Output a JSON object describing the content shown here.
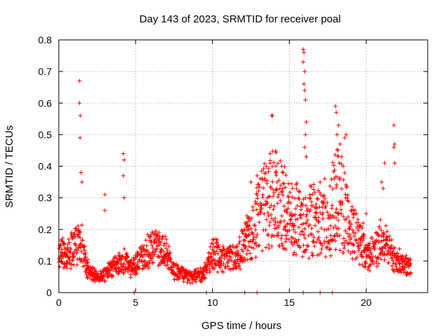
{
  "chart_data": {
    "type": "scatter",
    "title": "Day 143 of 2023, SRMTID for receiver poal",
    "xlabel": "GPS time / hours",
    "ylabel": "SRMTID / TECUs",
    "xlim": [
      0,
      24
    ],
    "ylim": [
      0,
      0.8
    ],
    "grid": true,
    "marker": "+",
    "color": "#ff0000",
    "x_ticks": [
      0,
      5,
      10,
      15,
      20
    ],
    "x_tick_labels": [
      "0",
      "5",
      "10",
      "15",
      "20"
    ],
    "y_ticks": [
      0,
      0.1,
      0.2,
      0.3,
      0.4,
      0.5,
      0.6,
      0.7,
      0.8
    ],
    "y_tick_labels": [
      "0",
      "0.1",
      "0.2",
      "0.3",
      "0.4",
      "0.5",
      "0.6",
      "0.7",
      "0.8"
    ],
    "baseline_trend": [
      [
        0.0,
        0.13
      ],
      [
        0.5,
        0.12
      ],
      [
        1.0,
        0.14
      ],
      [
        1.3,
        0.16
      ],
      [
        1.5,
        0.15
      ],
      [
        1.8,
        0.09
      ],
      [
        2.0,
        0.06
      ],
      [
        2.5,
        0.05
      ],
      [
        3.0,
        0.06
      ],
      [
        3.5,
        0.08
      ],
      [
        4.0,
        0.09
      ],
      [
        4.3,
        0.1
      ],
      [
        4.6,
        0.08
      ],
      [
        5.0,
        0.09
      ],
      [
        5.5,
        0.12
      ],
      [
        6.0,
        0.14
      ],
      [
        6.5,
        0.15
      ],
      [
        7.0,
        0.12
      ],
      [
        7.5,
        0.07
      ],
      [
        8.0,
        0.06
      ],
      [
        8.5,
        0.05
      ],
      [
        9.0,
        0.05
      ],
      [
        9.5,
        0.07
      ],
      [
        9.8,
        0.1
      ],
      [
        10.0,
        0.13
      ],
      [
        10.5,
        0.11
      ],
      [
        11.0,
        0.11
      ],
      [
        11.5,
        0.11
      ],
      [
        12.0,
        0.15
      ],
      [
        12.5,
        0.19
      ],
      [
        13.0,
        0.24
      ],
      [
        13.5,
        0.28
      ],
      [
        14.0,
        0.3
      ],
      [
        14.5,
        0.27
      ],
      [
        15.0,
        0.24
      ],
      [
        15.5,
        0.23
      ],
      [
        16.0,
        0.21
      ],
      [
        16.5,
        0.23
      ],
      [
        17.0,
        0.22
      ],
      [
        17.5,
        0.2
      ],
      [
        18.0,
        0.3
      ],
      [
        18.5,
        0.27
      ],
      [
        19.0,
        0.2
      ],
      [
        19.5,
        0.17
      ],
      [
        20.0,
        0.12
      ],
      [
        20.5,
        0.13
      ],
      [
        21.0,
        0.17
      ],
      [
        21.5,
        0.13
      ],
      [
        22.0,
        0.1
      ],
      [
        22.5,
        0.09
      ],
      [
        22.9,
        0.08
      ]
    ],
    "spikes": [
      [
        1.35,
        0.67
      ],
      [
        1.35,
        0.6
      ],
      [
        1.4,
        0.56
      ],
      [
        1.38,
        0.49
      ],
      [
        1.45,
        0.38
      ],
      [
        1.5,
        0.35
      ],
      [
        3.0,
        0.31
      ],
      [
        3.0,
        0.26
      ],
      [
        4.2,
        0.44
      ],
      [
        4.25,
        0.42
      ],
      [
        4.2,
        0.37
      ],
      [
        4.25,
        0.3
      ],
      [
        13.85,
        0.56
      ],
      [
        13.9,
        0.56
      ],
      [
        13.75,
        0.44
      ],
      [
        14.1,
        0.38
      ],
      [
        14.2,
        0.35
      ],
      [
        15.9,
        0.77
      ],
      [
        15.95,
        0.76
      ],
      [
        15.9,
        0.73
      ],
      [
        16.0,
        0.7
      ],
      [
        15.95,
        0.66
      ],
      [
        16.0,
        0.64
      ],
      [
        16.05,
        0.61
      ],
      [
        16.1,
        0.54
      ],
      [
        16.05,
        0.5
      ],
      [
        16.0,
        0.46
      ],
      [
        16.1,
        0.43
      ],
      [
        18.0,
        0.59
      ],
      [
        18.05,
        0.57
      ],
      [
        18.2,
        0.53
      ],
      [
        18.1,
        0.5
      ],
      [
        18.3,
        0.47
      ],
      [
        18.15,
        0.45
      ],
      [
        18.7,
        0.5
      ],
      [
        18.6,
        0.49
      ],
      [
        18.4,
        0.43
      ],
      [
        18.5,
        0.4
      ],
      [
        21.8,
        0.53
      ],
      [
        21.85,
        0.47
      ],
      [
        21.8,
        0.46
      ],
      [
        21.85,
        0.41
      ],
      [
        21.2,
        0.41
      ],
      [
        21.0,
        0.35
      ],
      [
        21.1,
        0.33
      ],
      [
        14.5,
        0.4
      ],
      [
        14.6,
        0.38
      ],
      [
        15.2,
        0.33
      ],
      [
        17.3,
        0.36
      ],
      [
        17.0,
        0.35
      ],
      [
        12.9,
        0.37
      ],
      [
        12.5,
        0.35
      ],
      [
        20.0,
        0.25
      ],
      [
        19.8,
        0.22
      ]
    ],
    "zero_values_x": [
      4.9,
      9.6,
      12.1,
      12.9,
      15.9,
      17.0,
      17.8
    ]
  }
}
